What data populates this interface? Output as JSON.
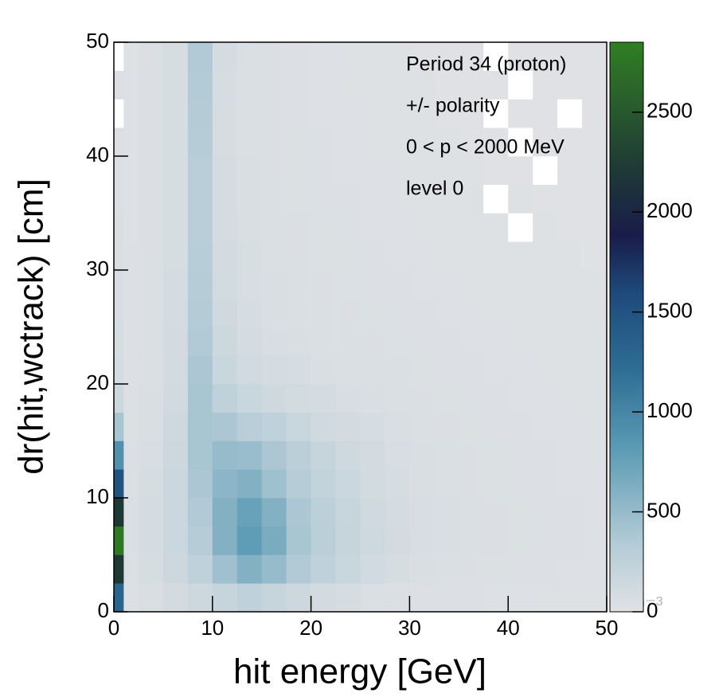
{
  "chart_data": {
    "type": "heatmap",
    "xlabel": "hit energy [GeV]",
    "ylabel": "dr(hit,wctrack) [cm]",
    "annotations": [
      "Period 34 (proton)",
      "+/- polarity",
      "0 < p < 2000 MeV",
      "level 0"
    ],
    "colorbar_multiplier": "×10⁻³",
    "xlim": [
      0,
      50
    ],
    "ylim": [
      0,
      50
    ],
    "xticks": [
      0,
      10,
      20,
      30,
      40,
      50
    ],
    "yticks": [
      0,
      10,
      20,
      30,
      40,
      50
    ],
    "zlim": [
      0,
      2850
    ],
    "zticks": [
      0,
      500,
      1000,
      1500,
      2000,
      2500
    ],
    "empty_color": "#ffffff",
    "colormap": [
      [
        0,
        "#e0e2e5"
      ],
      [
        0.12,
        "#b3cbd6"
      ],
      [
        0.28,
        "#5e9db5"
      ],
      [
        0.42,
        "#2f6f95"
      ],
      [
        0.56,
        "#1d4a7a"
      ],
      [
        0.66,
        "#191c4a"
      ],
      [
        0.78,
        "#1e3a35"
      ],
      [
        0.9,
        "#2a5f2c"
      ],
      [
        1,
        "#2f7f22"
      ]
    ],
    "xbins": [
      0,
      1,
      2.5,
      5,
      7.5,
      10,
      12.5,
      15,
      17.5,
      20,
      22.5,
      25,
      27.5,
      30,
      32.5,
      35,
      37.5,
      40,
      42.5,
      45,
      47.5,
      50
    ],
    "ybins": [
      0,
      2.5,
      5,
      7.5,
      10,
      12.5,
      15,
      17.5,
      20,
      22.5,
      25,
      27.5,
      30,
      32.5,
      35,
      37.5,
      40,
      42.5,
      45,
      47.5,
      50
    ],
    "values": [
      [
        1300,
        30,
        60,
        100,
        150,
        200,
        250,
        200,
        150,
        100,
        80,
        50,
        40,
        30,
        30,
        30,
        25,
        25,
        20,
        20,
        20
      ],
      [
        2200,
        40,
        80,
        150,
        250,
        450,
        600,
        500,
        350,
        250,
        180,
        120,
        80,
        60,
        50,
        40,
        35,
        30,
        30,
        25,
        25
      ],
      [
        2800,
        40,
        90,
        170,
        320,
        600,
        800,
        650,
        400,
        280,
        200,
        140,
        100,
        70,
        55,
        45,
        40,
        35,
        30,
        30,
        25
      ],
      [
        2200,
        40,
        90,
        170,
        350,
        600,
        750,
        600,
        380,
        270,
        190,
        130,
        90,
        70,
        55,
        45,
        40,
        35,
        30,
        30,
        25
      ],
      [
        1500,
        40,
        80,
        160,
        380,
        550,
        600,
        450,
        320,
        230,
        160,
        110,
        80,
        60,
        50,
        40,
        35,
        30,
        30,
        25,
        25
      ],
      [
        900,
        40,
        70,
        150,
        400,
        500,
        480,
        380,
        280,
        200,
        140,
        100,
        70,
        55,
        45,
        40,
        35,
        30,
        30,
        25,
        20
      ],
      [
        400,
        35,
        60,
        140,
        400,
        380,
        300,
        250,
        180,
        130,
        100,
        75,
        55,
        45,
        40,
        35,
        30,
        30,
        25,
        25,
        20
      ],
      [
        150,
        30,
        55,
        120,
        400,
        250,
        180,
        140,
        110,
        90,
        70,
        55,
        45,
        40,
        35,
        30,
        30,
        25,
        25,
        20,
        20
      ],
      [
        90,
        30,
        50,
        110,
        380,
        180,
        120,
        90,
        75,
        60,
        50,
        45,
        40,
        35,
        30,
        30,
        25,
        25,
        20,
        20,
        20
      ],
      [
        80,
        30,
        50,
        100,
        350,
        150,
        90,
        70,
        55,
        50,
        45,
        40,
        35,
        30,
        30,
        25,
        25,
        20,
        20,
        20,
        15
      ],
      [
        70,
        30,
        45,
        90,
        330,
        130,
        75,
        60,
        50,
        45,
        40,
        35,
        30,
        30,
        25,
        25,
        20,
        20,
        20,
        15,
        15
      ],
      [
        70,
        30,
        45,
        90,
        320,
        110,
        70,
        55,
        45,
        40,
        35,
        30,
        30,
        25,
        25,
        20,
        20,
        20,
        15,
        15,
        15
      ],
      [
        60,
        30,
        40,
        80,
        310,
        100,
        65,
        50,
        40,
        35,
        35,
        30,
        25,
        25,
        20,
        20,
        20,
        15,
        15,
        15,
        10
      ],
      [
        60,
        25,
        40,
        80,
        300,
        90,
        60,
        45,
        40,
        35,
        30,
        25,
        25,
        20,
        20,
        15,
        15,
        0,
        15,
        10,
        10
      ],
      [
        50,
        25,
        40,
        80,
        300,
        90,
        55,
        45,
        35,
        30,
        30,
        25,
        20,
        20,
        15,
        15,
        0,
        15,
        10,
        10,
        10
      ],
      [
        50,
        25,
        40,
        80,
        300,
        85,
        55,
        40,
        35,
        30,
        25,
        25,
        20,
        15,
        15,
        15,
        10,
        10,
        0,
        10,
        10
      ],
      [
        40,
        25,
        40,
        80,
        320,
        80,
        50,
        40,
        35,
        30,
        25,
        20,
        20,
        15,
        15,
        10,
        10,
        0,
        10,
        10,
        10
      ],
      [
        0,
        25,
        40,
        80,
        330,
        80,
        50,
        40,
        30,
        25,
        25,
        20,
        15,
        15,
        10,
        10,
        0,
        10,
        10,
        0,
        10
      ],
      [
        40,
        25,
        40,
        80,
        340,
        80,
        50,
        40,
        30,
        25,
        20,
        20,
        15,
        15,
        10,
        10,
        10,
        0,
        10,
        10,
        10
      ],
      [
        0,
        20,
        40,
        80,
        350,
        85,
        50,
        40,
        30,
        25,
        20,
        20,
        15,
        10,
        10,
        10,
        0,
        10,
        10,
        10,
        10
      ]
    ]
  }
}
